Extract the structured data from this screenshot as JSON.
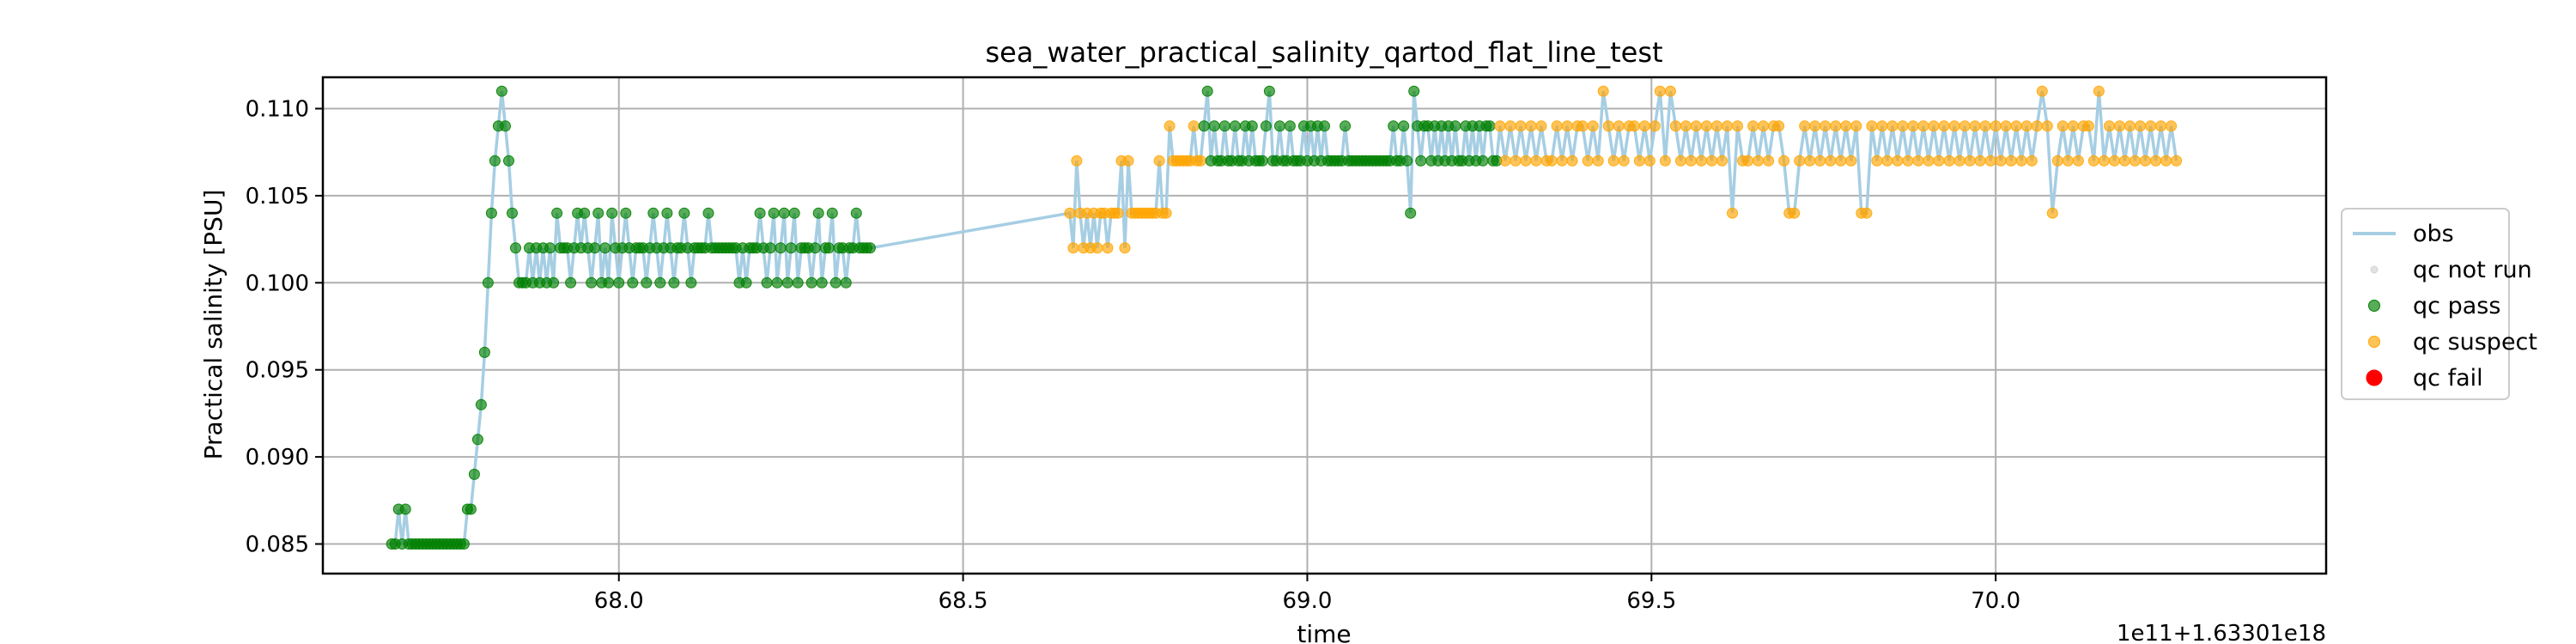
{
  "chart_data": {
    "type": "scatter",
    "title": "sea_water_practical_salinity_qartod_flat_line_test",
    "xlabel": "time",
    "ylabel": "Practical salinity [PSU]",
    "x_offset_label": "1e11+1.63301e18",
    "xlim": [
      67.57,
      70.48
    ],
    "ylim": [
      0.0833,
      0.1118
    ],
    "x_ticks": [
      68.0,
      68.5,
      69.0,
      69.5,
      70.0
    ],
    "x_tick_labels": [
      "68.0",
      "68.5",
      "69.0",
      "69.5",
      "70.0"
    ],
    "y_ticks": [
      0.085,
      0.09,
      0.095,
      0.1,
      0.105,
      0.11
    ],
    "y_tick_labels": [
      "0.085",
      "0.090",
      "0.095",
      "0.100",
      "0.105",
      "0.110"
    ],
    "grid": true,
    "legend_position": "right-outside",
    "legend": [
      {
        "label": "obs",
        "kind": "line",
        "color": "#a6cee3"
      },
      {
        "label": "qc not run",
        "kind": "marker",
        "color": "#d3d3d3"
      },
      {
        "label": "qc pass",
        "kind": "marker",
        "color": "#008000"
      },
      {
        "label": "qc suspect",
        "kind": "marker",
        "color": "#ffa500"
      },
      {
        "label": "qc fail",
        "kind": "marker",
        "color": "#ff0000"
      }
    ],
    "colors": {
      "obs": "#a6cee3",
      "qc_not_run": "#d3d3d3",
      "qc_pass": "#008000",
      "qc_suspect": "#ffa500",
      "qc_fail": "#ff0000"
    },
    "series": [
      {
        "name": "qc pass",
        "x_start": 67.67,
        "x_step": 0.005,
        "values": [
          0.085,
          0.085,
          0.087,
          0.085,
          0.087,
          0.085,
          0.085,
          0.085,
          0.085,
          0.085,
          0.085,
          0.085,
          0.085,
          0.085,
          0.085,
          0.085,
          0.085,
          0.085,
          0.085,
          0.085,
          0.085,
          0.085,
          0.087,
          0.087,
          0.089,
          0.091,
          0.093,
          0.096,
          0.1,
          0.104,
          0.107,
          0.109,
          0.111,
          0.109,
          0.107,
          0.104,
          0.102,
          0.1,
          0.1,
          0.1,
          0.102,
          0.1,
          0.102,
          0.1,
          0.102,
          0.1,
          0.102,
          0.1,
          0.104,
          0.102,
          0.102,
          0.102,
          0.1,
          0.102,
          0.104,
          0.102,
          0.104,
          0.102,
          0.1,
          0.102,
          0.104,
          0.1,
          0.102,
          0.1,
          0.104,
          0.102,
          0.1,
          0.102,
          0.104,
          0.102,
          0.1,
          0.102,
          0.102,
          0.102,
          0.1,
          0.102,
          0.104,
          0.102,
          0.1,
          0.102,
          0.104,
          0.102,
          0.1,
          0.102,
          0.102,
          0.104,
          0.102,
          0.1,
          0.102,
          0.102,
          0.102,
          0.102,
          0.104,
          0.102,
          0.102,
          0.102,
          0.102,
          0.102,
          0.102,
          0.102,
          0.102,
          0.1,
          0.102,
          0.1,
          0.102,
          0.102,
          0.102,
          0.104,
          0.102,
          0.1,
          0.102,
          0.104,
          0.1,
          0.102,
          0.104,
          0.1,
          0.102,
          0.104,
          0.1,
          0.102,
          0.102,
          0.102,
          0.1,
          0.102,
          0.104,
          0.1,
          0.102,
          0.102,
          0.104,
          0.1,
          0.102,
          0.102,
          0.1,
          0.102,
          0.102,
          0.104,
          0.102,
          0.102,
          0.102,
          0.102
        ]
      },
      {
        "name": "qc suspect",
        "x_start": 68.655,
        "x_step": 0.005,
        "values": [
          0.104,
          0.102,
          0.107,
          0.104,
          0.102,
          0.104,
          0.102,
          0.104,
          0.102,
          0.104,
          0.104,
          0.102,
          0.104,
          0.104,
          0.104,
          0.107,
          0.102,
          0.107,
          0.104,
          0.104,
          0.104,
          0.104,
          0.104,
          0.104,
          0.104,
          0.104,
          0.107,
          0.104,
          0.104,
          0.109,
          0.107,
          0.107,
          0.107,
          0.107,
          0.107,
          0.107,
          0.109,
          0.107,
          0.107
        ]
      },
      {
        "name": "qc pass",
        "x_start": 68.85,
        "x_step": 0.005,
        "values": [
          0.109,
          0.111,
          0.107,
          0.109,
          0.107,
          0.107,
          0.109,
          0.107,
          0.107,
          0.109,
          0.107,
          0.107,
          0.109,
          0.107,
          0.109,
          0.107,
          0.107,
          0.107,
          0.109,
          0.111,
          0.107,
          0.107,
          0.109,
          0.107,
          0.107,
          0.109,
          0.107,
          0.107,
          0.107,
          0.109,
          0.107,
          0.109,
          0.107,
          0.109,
          0.107,
          0.109,
          0.107,
          0.107,
          0.107,
          0.107,
          0.107,
          0.109,
          0.107,
          0.107,
          0.107,
          0.107,
          0.107,
          0.107,
          0.107,
          0.107,
          0.107,
          0.107,
          0.107,
          0.107,
          0.107,
          0.109,
          0.107,
          0.107,
          0.109,
          0.107,
          0.104,
          0.111,
          0.109,
          0.107,
          0.109,
          0.109,
          0.107,
          0.109,
          0.107,
          0.109,
          0.107,
          0.109,
          0.107,
          0.109,
          0.107,
          0.107,
          0.109,
          0.107,
          0.109,
          0.107,
          0.109,
          0.107,
          0.109,
          0.109,
          0.107,
          0.107
        ]
      },
      {
        "name": "qc suspect",
        "x_start": 69.28,
        "x_step": 0.0075,
        "values": [
          0.109,
          0.107,
          0.109,
          0.107,
          0.109,
          0.107,
          0.109,
          0.107,
          0.109,
          0.107,
          0.107,
          0.109,
          0.107,
          0.109,
          0.107,
          0.109,
          0.109,
          0.107,
          0.109,
          0.107,
          0.111,
          0.109,
          0.107,
          0.109,
          0.107,
          0.109,
          0.109,
          0.107,
          0.109,
          0.107,
          0.109,
          0.111,
          0.107,
          0.111,
          0.109,
          0.107,
          0.109,
          0.107,
          0.109,
          0.107,
          0.109,
          0.107,
          0.109,
          0.107,
          0.109,
          0.104,
          0.109,
          0.107,
          0.107,
          0.109,
          0.107,
          0.109,
          0.107,
          0.109,
          0.109,
          0.107,
          0.104,
          0.104,
          0.107,
          0.109,
          0.107,
          0.109,
          0.107,
          0.109,
          0.107,
          0.109,
          0.107,
          0.109,
          0.107,
          0.109,
          0.104,
          0.104,
          0.109,
          0.107,
          0.109,
          0.107,
          0.109,
          0.107,
          0.109,
          0.107,
          0.109,
          0.107,
          0.109,
          0.107,
          0.109,
          0.107,
          0.109,
          0.107,
          0.109,
          0.107,
          0.109,
          0.107,
          0.109,
          0.107,
          0.109,
          0.107,
          0.109,
          0.107,
          0.109,
          0.107,
          0.109,
          0.107,
          0.109,
          0.107,
          0.109,
          0.111,
          0.109,
          0.104,
          0.107,
          0.109,
          0.107,
          0.109,
          0.107,
          0.109,
          0.109,
          0.107,
          0.111,
          0.107,
          0.109,
          0.107,
          0.109,
          0.107,
          0.109,
          0.107,
          0.109,
          0.107,
          0.109,
          0.107,
          0.109,
          0.107,
          0.109,
          0.107
        ]
      }
    ]
  }
}
